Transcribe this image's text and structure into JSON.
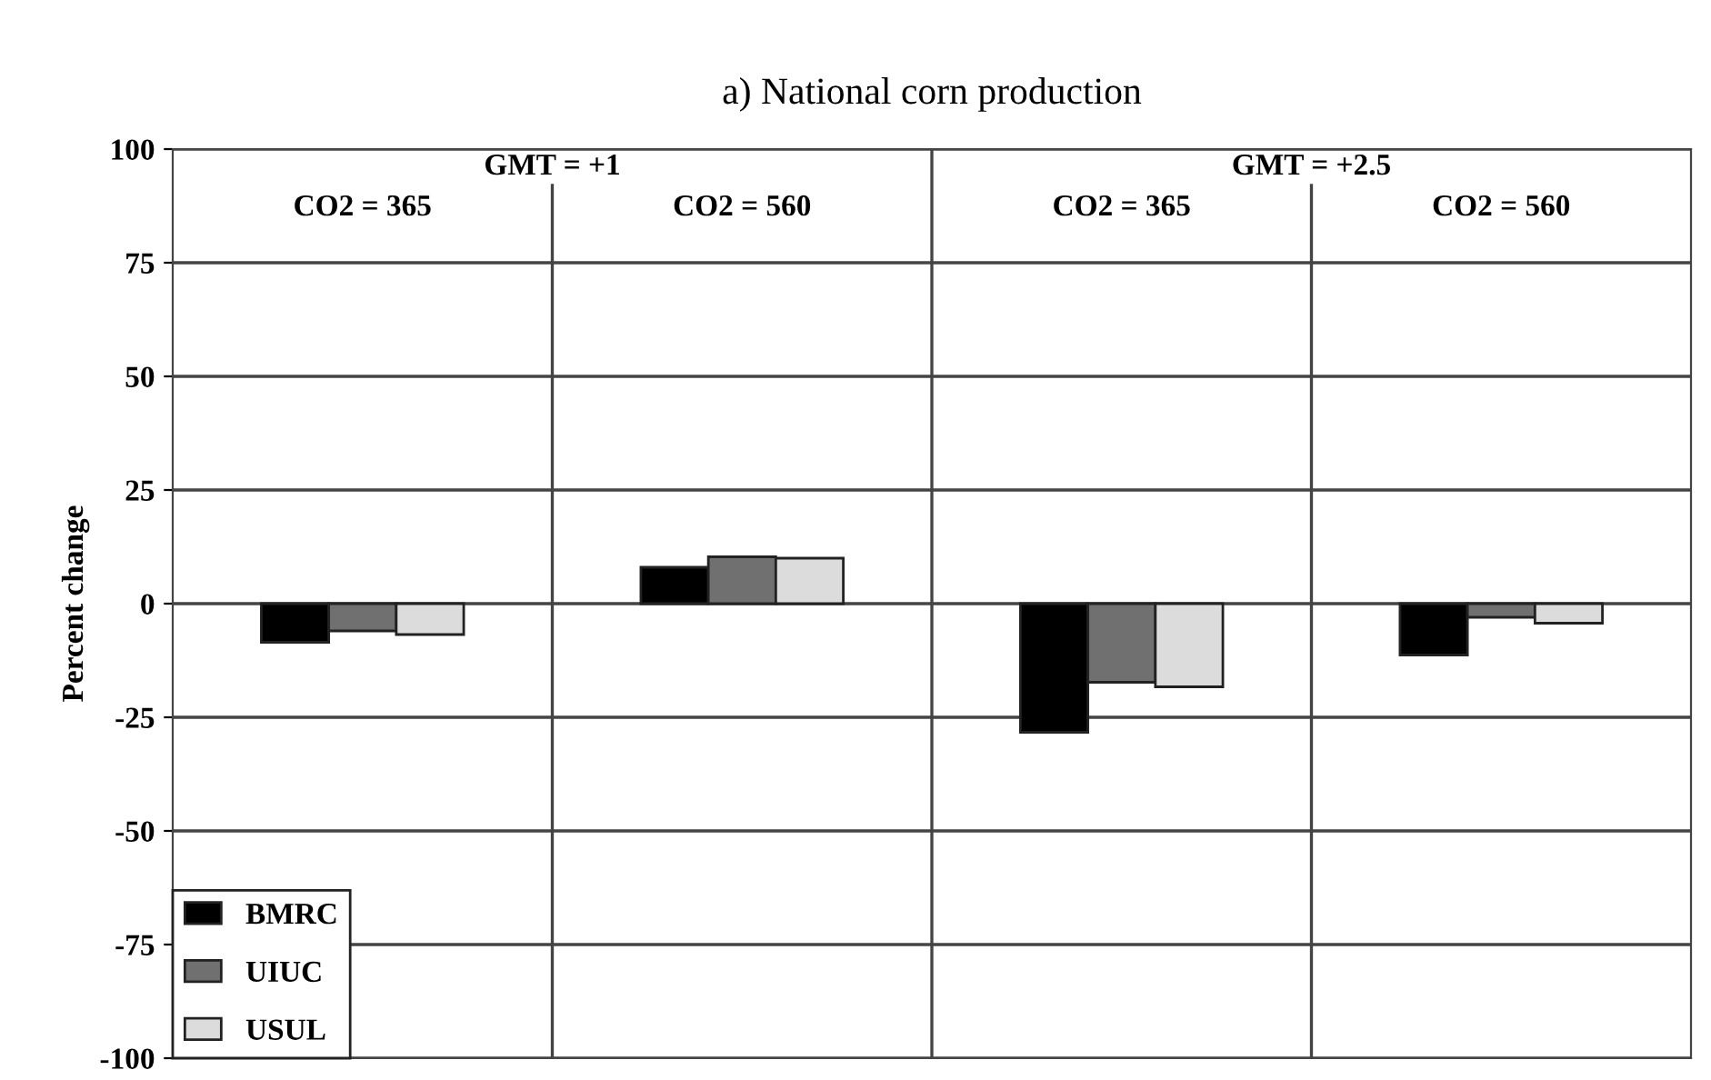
{
  "chart_data": {
    "type": "bar",
    "title": "a) National corn production",
    "ylabel": "Percent change",
    "categories": [
      "CO2 = 365",
      "CO2 = 560",
      "CO2 = 365",
      "CO2 = 560"
    ],
    "annotations": [
      "GMT = +1",
      "GMT = +2.5"
    ],
    "series": [
      {
        "name": "BMRC",
        "color": "#000000",
        "values": [
          -8.5,
          8,
          -28.3,
          -11.3
        ]
      },
      {
        "name": "UIUC",
        "color": "#707070",
        "values": [
          -6,
          10.3,
          -17.3,
          -3
        ]
      },
      {
        "name": "USUL",
        "color": "#dcdcdc",
        "values": [
          -6.8,
          10,
          -18.3,
          -4.3
        ]
      }
    ],
    "ylim": [
      -100,
      100
    ],
    "yticks": [
      -100,
      -75,
      -50,
      -25,
      0,
      25,
      50,
      75,
      100
    ],
    "grid": "y",
    "legend": "bottom left"
  }
}
